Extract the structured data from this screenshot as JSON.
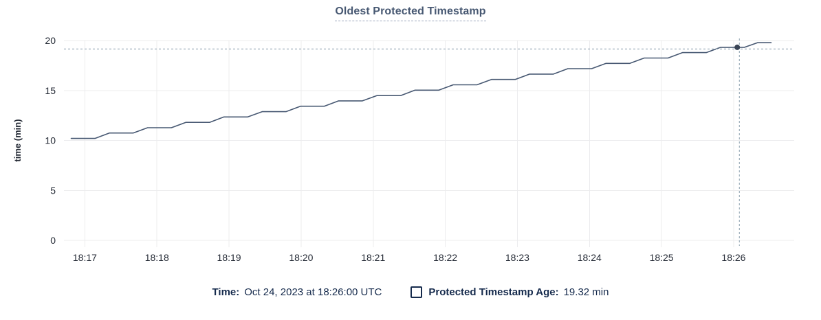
{
  "chart": {
    "title": "Oldest Protected Timestamp"
  },
  "chart_data": {
    "type": "line",
    "title": "Oldest Protected Timestamp",
    "xlabel": "",
    "ylabel": "time (min)",
    "ylim": [
      0,
      20
    ],
    "yticks": [
      0,
      5,
      10,
      15,
      20
    ],
    "x_unit": "minutes after 18:17 UTC",
    "x_domain": [
      -0.29,
      9.84
    ],
    "grid": true,
    "legend_position": "bottom",
    "xticks": [
      {
        "t": 0,
        "label": "18:17"
      },
      {
        "t": 1,
        "label": "18:18"
      },
      {
        "t": 2,
        "label": "18:19"
      },
      {
        "t": 3,
        "label": "18:20"
      },
      {
        "t": 4,
        "label": "18:21"
      },
      {
        "t": 5,
        "label": "18:22"
      },
      {
        "t": 6,
        "label": "18:23"
      },
      {
        "t": 7,
        "label": "18:24"
      },
      {
        "t": 8,
        "label": "18:25"
      },
      {
        "t": 9,
        "label": "18:26"
      }
    ],
    "series": [
      {
        "name": "Protected Timestamp Age",
        "color": "#475872",
        "points": [
          [
            -0.19,
            10.2
          ],
          [
            0.14,
            10.2
          ],
          [
            0.34,
            10.74
          ],
          [
            0.67,
            10.74
          ],
          [
            0.87,
            11.27
          ],
          [
            1.2,
            11.27
          ],
          [
            1.4,
            11.81
          ],
          [
            1.73,
            11.81
          ],
          [
            1.93,
            12.35
          ],
          [
            2.26,
            12.35
          ],
          [
            2.46,
            12.88
          ],
          [
            2.79,
            12.88
          ],
          [
            2.99,
            13.42
          ],
          [
            3.32,
            13.42
          ],
          [
            3.52,
            13.96
          ],
          [
            3.85,
            13.96
          ],
          [
            4.05,
            14.49
          ],
          [
            4.38,
            14.49
          ],
          [
            4.58,
            15.03
          ],
          [
            4.91,
            15.03
          ],
          [
            5.11,
            15.57
          ],
          [
            5.44,
            15.57
          ],
          [
            5.64,
            16.1
          ],
          [
            5.97,
            16.1
          ],
          [
            6.17,
            16.64
          ],
          [
            6.5,
            16.64
          ],
          [
            6.7,
            17.18
          ],
          [
            7.03,
            17.18
          ],
          [
            7.23,
            17.71
          ],
          [
            7.56,
            17.71
          ],
          [
            7.76,
            18.25
          ],
          [
            8.09,
            18.25
          ],
          [
            8.29,
            18.79
          ],
          [
            8.62,
            18.79
          ],
          [
            8.82,
            19.32
          ],
          [
            9.15,
            19.32
          ],
          [
            9.33,
            19.78
          ],
          [
            9.52,
            19.78
          ]
        ]
      }
    ],
    "crosshair": {
      "t": 9.08,
      "dot_t": 9.05,
      "value": 19.32,
      "time_label": "18:26:00"
    }
  },
  "legend": {
    "time_label": "Time:",
    "time_value": "Oct 24, 2023 at 18:26:00 UTC",
    "series_label": "Protected Timestamp Age:",
    "series_value": "19.32 min"
  },
  "colors": {
    "line": "#475872",
    "dot": "#394455",
    "crosshair": "#9fb0bc",
    "grid": "#ececee",
    "title_text": "#475872",
    "title_underline": "#9aa5bb",
    "tick_text": "#242a35",
    "legend_text": "#152a4c",
    "background": "#ffffff"
  }
}
